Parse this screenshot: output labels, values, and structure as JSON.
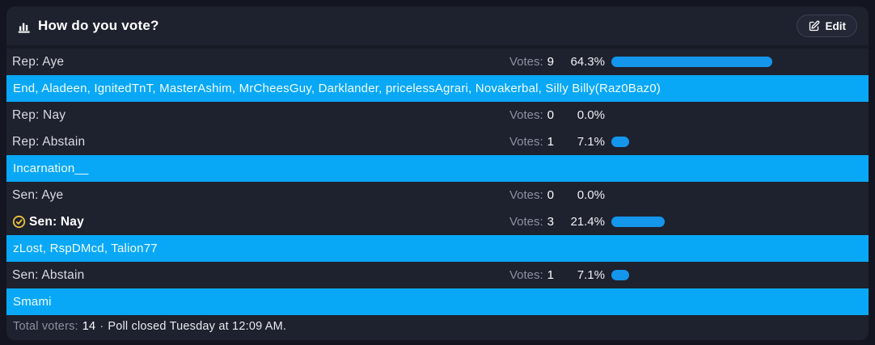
{
  "colors": {
    "page_bg": "#131520",
    "card_bg": "#1e212e",
    "banner_blue": "#09a8f6",
    "bar_blue": "#1396ec",
    "voted_check_yellow": "#e9c23d"
  },
  "header": {
    "title": "How do you vote?",
    "edit_label": "Edit"
  },
  "poll": {
    "votes_label": "Votes:",
    "rows": [
      {
        "type": "option",
        "label": "Rep: Aye",
        "votes": "9",
        "pct": "64.3%",
        "pct_value": 64.3,
        "voted": false
      },
      {
        "type": "voters",
        "text": "End, Aladeen, IgnitedTnT, MasterAshim, MrCheesGuy, Darklander, pricelessAgrari, Novakerbal, Silly Billy(Raz0Baz0)"
      },
      {
        "type": "option",
        "label": "Rep: Nay",
        "votes": "0",
        "pct": "0.0%",
        "pct_value": 0,
        "voted": false
      },
      {
        "type": "option",
        "label": "Rep: Abstain",
        "votes": "1",
        "pct": "7.1%",
        "pct_value": 7.1,
        "voted": false
      },
      {
        "type": "voters",
        "text": "Incarnation__"
      },
      {
        "type": "option",
        "label": "Sen: Aye",
        "votes": "0",
        "pct": "0.0%",
        "pct_value": 0,
        "voted": false
      },
      {
        "type": "option",
        "label": "Sen: Nay",
        "votes": "3",
        "pct": "21.4%",
        "pct_value": 21.4,
        "voted": true
      },
      {
        "type": "voters",
        "text": "zLost, RspDMcd, Talion77"
      },
      {
        "type": "option",
        "label": "Sen: Abstain",
        "votes": "1",
        "pct": "7.1%",
        "pct_value": 7.1,
        "voted": false
      },
      {
        "type": "voters",
        "text": "Smami"
      }
    ]
  },
  "footer": {
    "total_label": "Total voters:",
    "total": "14",
    "separator": "·",
    "status": "Poll closed Tuesday at 12:09 AM."
  }
}
